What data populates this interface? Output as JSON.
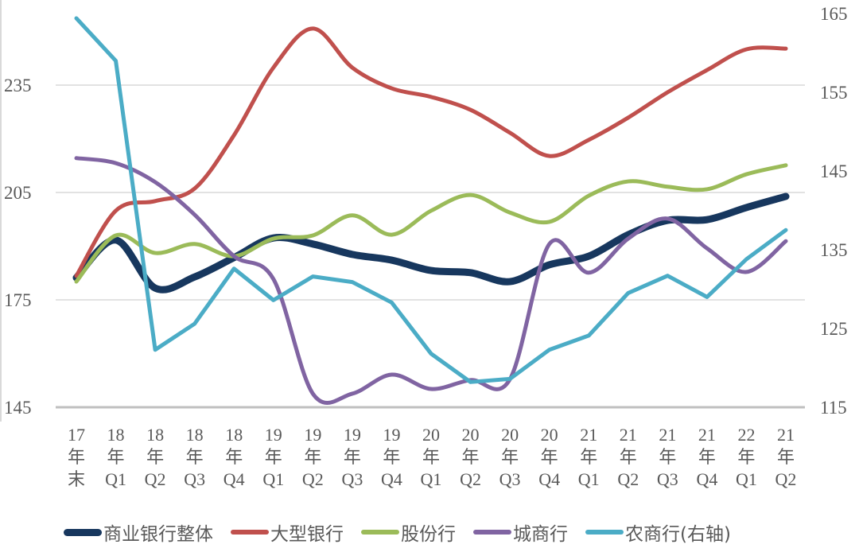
{
  "chart_data": {
    "type": "line",
    "title": "",
    "xlabel": "",
    "ylabel": "",
    "categories": [
      [
        "17",
        "年",
        "末"
      ],
      [
        "18",
        "年",
        "Q1"
      ],
      [
        "18",
        "年",
        "Q2"
      ],
      [
        "18",
        "年",
        "Q3"
      ],
      [
        "18",
        "年",
        "Q4"
      ],
      [
        "19",
        "年",
        "Q1"
      ],
      [
        "19",
        "年",
        "Q2"
      ],
      [
        "19",
        "年",
        "Q3"
      ],
      [
        "19",
        "年",
        "Q4"
      ],
      [
        "20",
        "年",
        "Q1"
      ],
      [
        "20",
        "年",
        "Q2"
      ],
      [
        "20",
        "年",
        "Q3"
      ],
      [
        "20",
        "年",
        "Q4"
      ],
      [
        "21",
        "年",
        "Q1"
      ],
      [
        "21",
        "年",
        "Q2"
      ],
      [
        "21",
        "年",
        "Q3"
      ],
      [
        "21",
        "年",
        "Q4"
      ],
      [
        "22",
        "年",
        "Q1"
      ],
      [
        "21",
        "年",
        "Q2"
      ]
    ],
    "y_left": {
      "ylim": [
        145,
        255
      ],
      "ticks": [
        145,
        175,
        205,
        235
      ]
    },
    "y_right": {
      "ylim": [
        115,
        165
      ],
      "ticks": [
        115,
        125,
        135,
        145,
        155,
        165
      ]
    },
    "grid": true,
    "legend_position": "bottom",
    "series": [
      {
        "name": "商业银行整体",
        "axis": "left",
        "color": "#17375e",
        "thick": true,
        "values": [
          181.2,
          191.7,
          178.3,
          181.4,
          186.8,
          192.3,
          190.6,
          187.7,
          186.1,
          183.2,
          182.6,
          180.1,
          184.8,
          187.2,
          193.2,
          197.2,
          197.4,
          200.8,
          203.9
        ]
      },
      {
        "name": "大型银行",
        "axis": "left",
        "color": "#c0504d",
        "thick": false,
        "values": [
          181.7,
          199.9,
          202.6,
          206.1,
          221.0,
          239.9,
          250.8,
          239.9,
          234.1,
          231.7,
          228.1,
          221.7,
          215.2,
          219.7,
          225.9,
          233.0,
          239.2,
          245.0,
          245.2
        ]
      },
      {
        "name": "股份行",
        "axis": "left",
        "color": "#9bbb59",
        "thick": false,
        "values": [
          180.1,
          193.0,
          188.1,
          190.6,
          187.2,
          192.1,
          193.0,
          198.6,
          193.2,
          199.9,
          204.3,
          199.4,
          196.8,
          204.1,
          208.1,
          206.6,
          205.9,
          210.1,
          212.6
        ]
      },
      {
        "name": "城商行",
        "axis": "left",
        "color": "#8064a2",
        "thick": false,
        "values": [
          214.6,
          213.2,
          207.9,
          198.8,
          187.2,
          180.8,
          148.8,
          148.8,
          154.1,
          150.1,
          152.6,
          152.8,
          190.6,
          182.6,
          192.1,
          197.7,
          189.4,
          182.8,
          191.4
        ]
      },
      {
        "name": "农商行(右轴)",
        "axis": "right",
        "color": "#4bacc6",
        "thick": false,
        "smooth": false,
        "values": [
          164.4,
          159.0,
          122.3,
          125.6,
          132.6,
          128.6,
          131.6,
          130.9,
          128.3,
          121.8,
          118.2,
          118.6,
          122.3,
          124.1,
          129.5,
          131.7,
          129.0,
          133.8,
          137.5
        ]
      }
    ]
  }
}
